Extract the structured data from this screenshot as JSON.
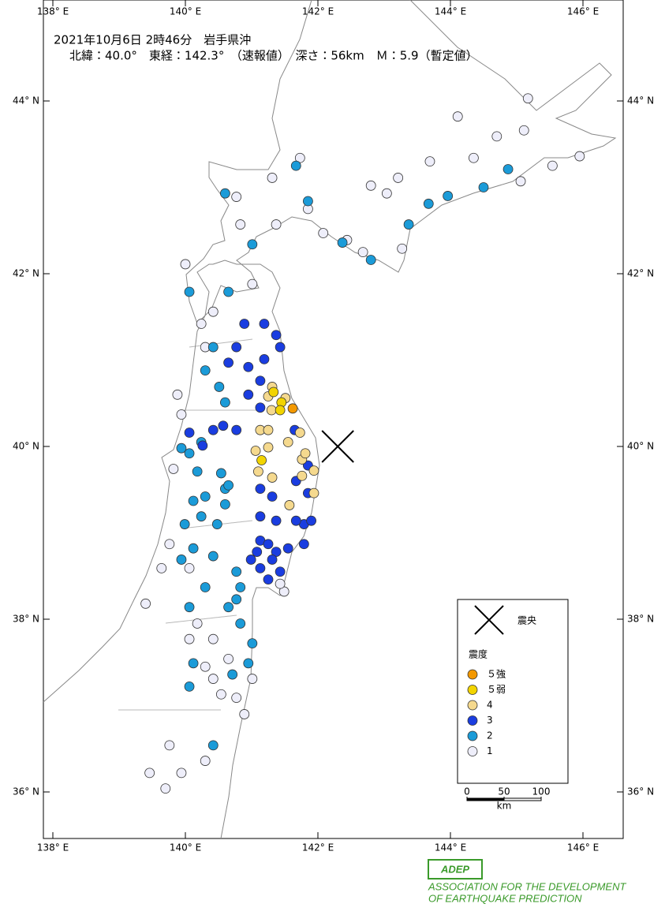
{
  "header": {
    "line1": "2021年10月6日 2時46分　岩手県沖",
    "line2": "北緯：40.0°　東経：142.3°　（速報値）　深さ：56km　Ｍ：5.9（暫定値）"
  },
  "lon_ticks": [
    {
      "value": 138,
      "label": "138° E"
    },
    {
      "value": 140,
      "label": "140° E"
    },
    {
      "value": 142,
      "label": "142° E"
    },
    {
      "value": 144,
      "label": "144° E"
    },
    {
      "value": 146,
      "label": "146° E"
    }
  ],
  "lat_ticks": [
    {
      "value": 44,
      "label": "44° N"
    },
    {
      "value": 42,
      "label": "42° N"
    },
    {
      "value": 40,
      "label": "40° N"
    },
    {
      "value": 38,
      "label": "38° N"
    },
    {
      "value": 36,
      "label": "36° N"
    }
  ],
  "epicenter": {
    "lon": 142.3,
    "lat": 40.0
  },
  "legend": {
    "epicenter_label": "震央",
    "intensity_title": "震度",
    "levels": [
      {
        "label": "５強",
        "color": "#f39800"
      },
      {
        "label": "５弱",
        "color": "#f2d400"
      },
      {
        "label": "4",
        "color": "#f5d98e"
      },
      {
        "label": "3",
        "color": "#1a3de0"
      },
      {
        "label": "2",
        "color": "#1b9bd8"
      },
      {
        "label": "1",
        "color": "#eeeefa"
      }
    ]
  },
  "scale": {
    "ticks": [
      0,
      50,
      100
    ],
    "unit": "km"
  },
  "stations": [
    [
      141.62,
      40.44,
      0
    ],
    [
      141.43,
      40.42,
      1
    ],
    [
      141.45,
      40.51,
      1
    ],
    [
      141.15,
      39.84,
      1
    ],
    [
      141.33,
      40.63,
      1
    ],
    [
      141.31,
      40.69,
      2
    ],
    [
      141.25,
      40.58,
      2
    ],
    [
      141.51,
      40.56,
      2
    ],
    [
      141.3,
      40.42,
      2
    ],
    [
      141.73,
      40.16,
      2
    ],
    [
      141.81,
      39.92,
      2
    ],
    [
      141.55,
      40.05,
      2
    ],
    [
      141.25,
      40.19,
      2
    ],
    [
      141.06,
      39.95,
      2
    ],
    [
      141.25,
      39.99,
      2
    ],
    [
      141.1,
      39.71,
      2
    ],
    [
      141.31,
      39.64,
      2
    ],
    [
      141.76,
      39.66,
      2
    ],
    [
      141.94,
      39.72,
      2
    ],
    [
      141.94,
      39.46,
      2
    ],
    [
      141.57,
      39.32,
      2
    ],
    [
      141.76,
      39.85,
      2
    ],
    [
      141.13,
      40.19,
      2
    ],
    [
      141.13,
      40.76,
      3
    ],
    [
      141.19,
      41.01,
      3
    ],
    [
      141.43,
      41.15,
      3
    ],
    [
      141.37,
      41.29,
      3
    ],
    [
      141.19,
      41.42,
      3
    ],
    [
      140.89,
      41.42,
      3
    ],
    [
      140.77,
      41.15,
      3
    ],
    [
      140.95,
      40.92,
      3
    ],
    [
      140.65,
      40.97,
      3
    ],
    [
      141.13,
      40.45,
      3
    ],
    [
      140.95,
      40.6,
      3
    ],
    [
      140.77,
      40.19,
      3
    ],
    [
      140.42,
      40.19,
      3
    ],
    [
      140.06,
      40.16,
      3
    ],
    [
      140.26,
      40.01,
      3
    ],
    [
      140.57,
      40.24,
      3
    ],
    [
      141.65,
      40.19,
      3
    ],
    [
      141.85,
      39.78,
      3
    ],
    [
      141.67,
      39.6,
      3
    ],
    [
      141.85,
      39.46,
      3
    ],
    [
      141.13,
      39.51,
      3
    ],
    [
      141.31,
      39.42,
      3
    ],
    [
      141.13,
      39.19,
      3
    ],
    [
      141.37,
      39.14,
      3
    ],
    [
      141.67,
      39.14,
      3
    ],
    [
      141.9,
      39.14,
      3
    ],
    [
      141.79,
      38.87,
      3
    ],
    [
      141.55,
      38.82,
      3
    ],
    [
      141.25,
      38.87,
      3
    ],
    [
      141.08,
      38.78,
      3
    ],
    [
      141.31,
      38.69,
      3
    ],
    [
      141.13,
      38.59,
      3
    ],
    [
      140.99,
      38.69,
      3
    ],
    [
      141.43,
      38.55,
      3
    ],
    [
      141.25,
      38.46,
      3
    ],
    [
      141.37,
      38.78,
      3
    ],
    [
      141.13,
      38.91,
      3
    ],
    [
      141.79,
      39.1,
      3
    ],
    [
      140.24,
      40.05,
      4
    ],
    [
      140.06,
      39.92,
      4
    ],
    [
      139.94,
      39.98,
      4
    ],
    [
      140.54,
      39.69,
      4
    ],
    [
      140.65,
      39.55,
      4
    ],
    [
      140.3,
      39.42,
      4
    ],
    [
      140.6,
      39.33,
      4
    ],
    [
      140.12,
      39.37,
      4
    ],
    [
      140.48,
      39.1,
      4
    ],
    [
      139.99,
      39.1,
      4
    ],
    [
      140.12,
      38.82,
      4
    ],
    [
      139.94,
      38.69,
      4
    ],
    [
      140.42,
      38.73,
      4
    ],
    [
      140.3,
      38.37,
      4
    ],
    [
      140.06,
      38.14,
      4
    ],
    [
      140.77,
      38.55,
      4
    ],
    [
      140.77,
      38.23,
      4
    ],
    [
      140.83,
      37.95,
      4
    ],
    [
      141.01,
      37.72,
      4
    ],
    [
      140.95,
      37.49,
      4
    ],
    [
      140.71,
      37.36,
      4
    ],
    [
      140.12,
      37.49,
      4
    ],
    [
      140.06,
      37.22,
      4
    ],
    [
      140.42,
      36.54,
      4
    ],
    [
      140.6,
      42.93,
      4
    ],
    [
      141.01,
      42.34,
      4
    ],
    [
      140.06,
      41.79,
      4
    ],
    [
      140.65,
      41.79,
      4
    ],
    [
      140.42,
      41.15,
      4
    ],
    [
      140.3,
      40.88,
      4
    ],
    [
      140.51,
      40.69,
      4
    ],
    [
      140.6,
      40.51,
      4
    ],
    [
      141.85,
      42.84,
      4
    ],
    [
      141.67,
      43.25,
      4
    ],
    [
      142.37,
      42.36,
      4
    ],
    [
      142.8,
      42.16,
      4
    ],
    [
      143.37,
      42.57,
      4
    ],
    [
      143.67,
      42.81,
      4
    ],
    [
      143.96,
      42.9,
      4
    ],
    [
      144.5,
      43.0,
      4
    ],
    [
      144.87,
      43.21,
      4
    ],
    [
      140.18,
      39.71,
      4
    ],
    [
      140.24,
      39.19,
      4
    ],
    [
      140.6,
      39.51,
      4
    ],
    [
      140.83,
      38.37,
      4
    ],
    [
      140.65,
      38.14,
      4
    ],
    [
      140.0,
      42.11,
      5
    ],
    [
      140.77,
      42.89,
      5
    ],
    [
      140.83,
      42.57,
      5
    ],
    [
      141.37,
      42.57,
      5
    ],
    [
      141.85,
      42.75,
      5
    ],
    [
      142.08,
      42.47,
      5
    ],
    [
      142.44,
      42.39,
      5
    ],
    [
      142.68,
      42.25,
      5
    ],
    [
      143.27,
      42.29,
      5
    ],
    [
      143.21,
      43.11,
      5
    ],
    [
      143.69,
      43.3,
      5
    ],
    [
      144.11,
      43.82,
      5
    ],
    [
      144.7,
      43.59,
      5
    ],
    [
      145.11,
      43.66,
      5
    ],
    [
      145.17,
      44.03,
      5
    ],
    [
      145.54,
      43.25,
      5
    ],
    [
      145.95,
      43.36,
      5
    ],
    [
      144.35,
      43.34,
      5
    ],
    [
      145.06,
      43.07,
      5
    ],
    [
      142.8,
      43.02,
      5
    ],
    [
      143.04,
      42.93,
      5
    ],
    [
      141.73,
      43.34,
      5
    ],
    [
      141.31,
      43.11,
      5
    ],
    [
      140.24,
      41.42,
      5
    ],
    [
      140.42,
      41.56,
      5
    ],
    [
      141.01,
      41.88,
      5
    ],
    [
      140.3,
      41.15,
      5
    ],
    [
      139.88,
      40.6,
      5
    ],
    [
      139.94,
      40.37,
      5
    ],
    [
      139.82,
      39.74,
      5
    ],
    [
      139.76,
      38.87,
      5
    ],
    [
      139.64,
      38.59,
      5
    ],
    [
      139.4,
      38.18,
      5
    ],
    [
      140.06,
      38.59,
      5
    ],
    [
      140.18,
      37.95,
      5
    ],
    [
      140.42,
      37.77,
      5
    ],
    [
      140.06,
      37.77,
      5
    ],
    [
      140.3,
      37.45,
      5
    ],
    [
      140.54,
      37.13,
      5
    ],
    [
      140.77,
      37.09,
      5
    ],
    [
      140.89,
      36.9,
      5
    ],
    [
      140.3,
      36.36,
      5
    ],
    [
      139.94,
      36.22,
      5
    ],
    [
      139.46,
      36.22,
      5
    ],
    [
      139.76,
      36.54,
      5
    ],
    [
      139.7,
      36.04,
      5
    ],
    [
      141.43,
      38.41,
      5
    ],
    [
      141.49,
      38.32,
      5
    ],
    [
      141.01,
      37.31,
      5
    ],
    [
      140.42,
      37.31,
      5
    ],
    [
      140.65,
      37.54,
      5
    ]
  ],
  "logo": {
    "mark": "ADEP",
    "line1": "ASSOCIATION FOR THE DEVELOPMENT",
    "line2": "OF EARTHQUAKE PREDICTION"
  }
}
